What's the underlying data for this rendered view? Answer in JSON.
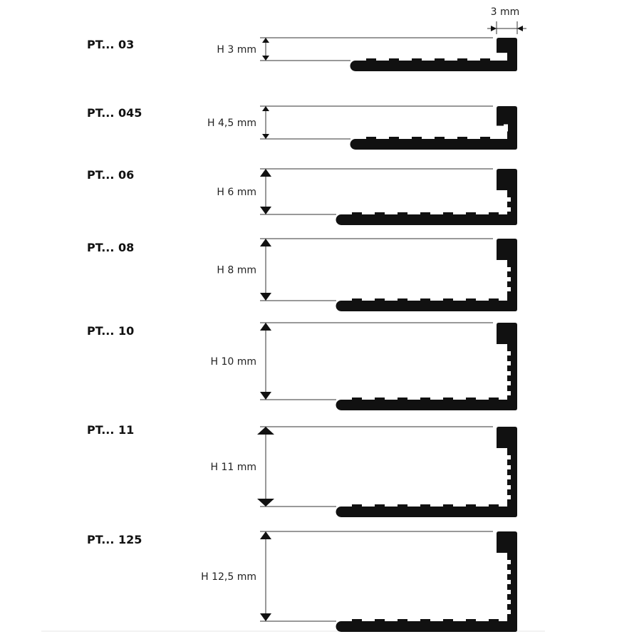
{
  "width_label": "3 mm",
  "profiles": [
    {
      "code": "PT... 03",
      "height": "H 3 mm"
    },
    {
      "code": "PT... 045",
      "height": "H 4,5 mm"
    },
    {
      "code": "PT... 06",
      "height": "H  6 mm"
    },
    {
      "code": "PT... 08",
      "height": "H  8 mm"
    },
    {
      "code": "PT... 10",
      "height": "H  10 mm"
    },
    {
      "code": "PT... 11",
      "height": "H 11 mm"
    },
    {
      "code": "PT... 125",
      "height": "H  12,5 mm"
    }
  ]
}
